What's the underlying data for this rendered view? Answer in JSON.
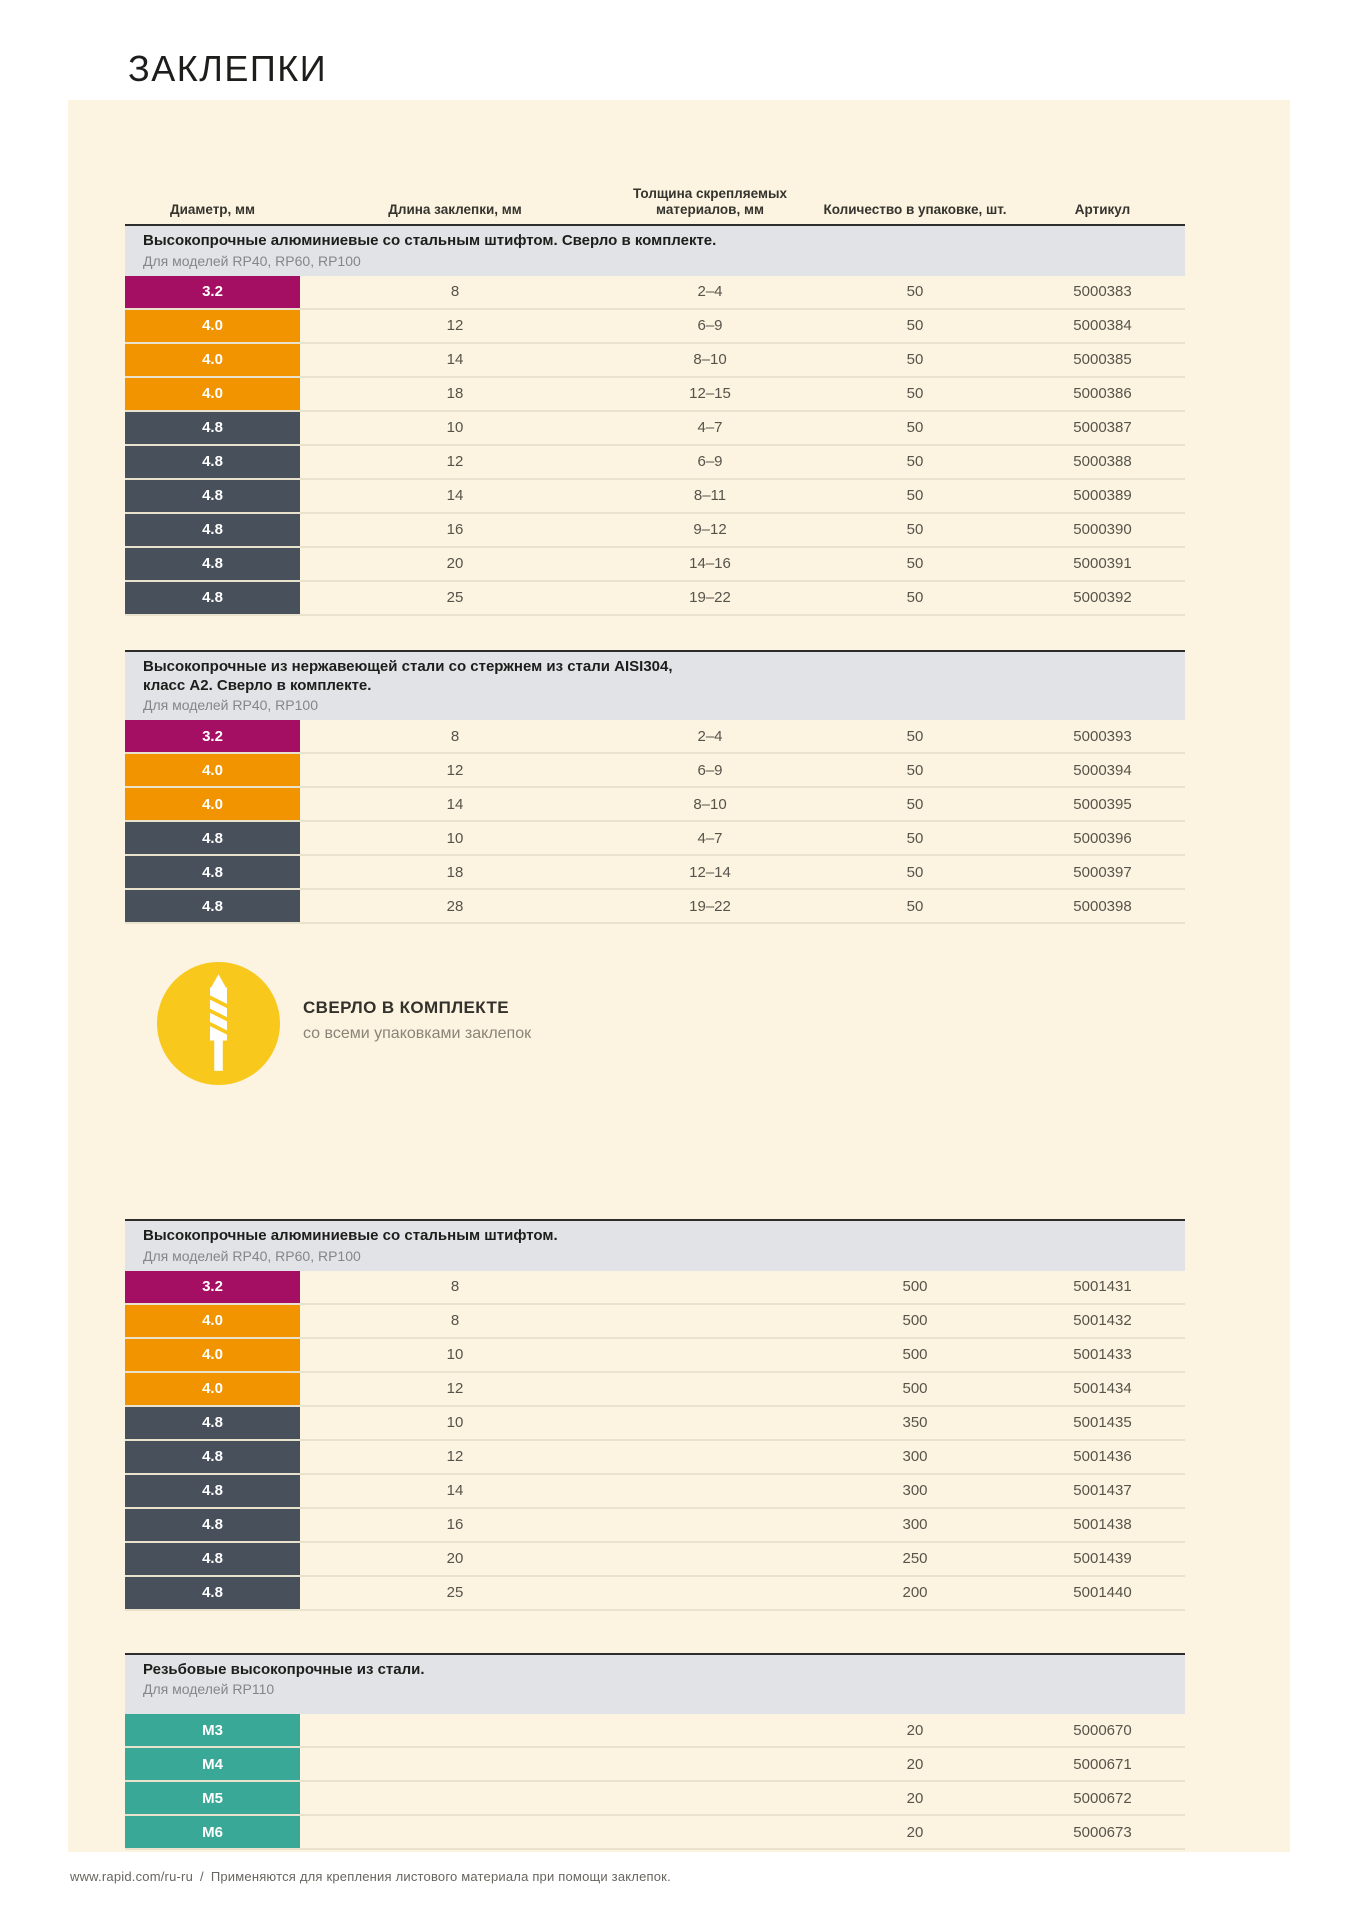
{
  "title": "ЗАКЛЕПКИ",
  "columns": {
    "diameter": "Диаметр, мм",
    "length": "Длина заклепки, мм",
    "thickness": "Толщина скрепляемых\nматериалов, мм",
    "quantity": "Количество в упаковке, шт.",
    "article": "Артикул"
  },
  "colors": {
    "magenta": "#a50f63",
    "orange": "#f29400",
    "slate": "#47505b",
    "teal": "#3aa897",
    "yellow": "#f8c81d",
    "panel_cream": "#fcf4e0",
    "section_header_gray": "#e2e3e6"
  },
  "sections": [
    {
      "title": "Высокопрочные алюминиевые со стальным штифтом. Сверло в комплекте.",
      "subtitle": "Для моделей RP40, RP60, RP100",
      "rows": [
        {
          "diameter": "3.2",
          "color": "magenta",
          "length": "8",
          "thickness": "2–4",
          "quantity": "50",
          "article": "5000383"
        },
        {
          "diameter": "4.0",
          "color": "orange",
          "length": "12",
          "thickness": "6–9",
          "quantity": "50",
          "article": "5000384"
        },
        {
          "diameter": "4.0",
          "color": "orange",
          "length": "14",
          "thickness": "8–10",
          "quantity": "50",
          "article": "5000385"
        },
        {
          "diameter": "4.0",
          "color": "orange",
          "length": "18",
          "thickness": "12–15",
          "quantity": "50",
          "article": "5000386"
        },
        {
          "diameter": "4.8",
          "color": "slate",
          "length": "10",
          "thickness": "4–7",
          "quantity": "50",
          "article": "5000387"
        },
        {
          "diameter": "4.8",
          "color": "slate",
          "length": "12",
          "thickness": "6–9",
          "quantity": "50",
          "article": "5000388"
        },
        {
          "diameter": "4.8",
          "color": "slate",
          "length": "14",
          "thickness": "8–11",
          "quantity": "50",
          "article": "5000389"
        },
        {
          "diameter": "4.8",
          "color": "slate",
          "length": "16",
          "thickness": "9–12",
          "quantity": "50",
          "article": "5000390"
        },
        {
          "diameter": "4.8",
          "color": "slate",
          "length": "20",
          "thickness": "14–16",
          "quantity": "50",
          "article": "5000391"
        },
        {
          "diameter": "4.8",
          "color": "slate",
          "length": "25",
          "thickness": "19–22",
          "quantity": "50",
          "article": "5000392"
        }
      ]
    },
    {
      "title": "Высокопрочные из нержавеющей стали со стержнем из стали AISI304,\nкласс А2. Сверло в комплекте.",
      "subtitle": "Для моделей RP40, RP100",
      "rows": [
        {
          "diameter": "3.2",
          "color": "magenta",
          "length": "8",
          "thickness": "2–4",
          "quantity": "50",
          "article": "5000393"
        },
        {
          "diameter": "4.0",
          "color": "orange",
          "length": "12",
          "thickness": "6–9",
          "quantity": "50",
          "article": "5000394"
        },
        {
          "diameter": "4.0",
          "color": "orange",
          "length": "14",
          "thickness": "8–10",
          "quantity": "50",
          "article": "5000395"
        },
        {
          "diameter": "4.8",
          "color": "slate",
          "length": "10",
          "thickness": "4–7",
          "quantity": "50",
          "article": "5000396"
        },
        {
          "diameter": "4.8",
          "color": "slate",
          "length": "18",
          "thickness": "12–14",
          "quantity": "50",
          "article": "5000397"
        },
        {
          "diameter": "4.8",
          "color": "slate",
          "length": "28",
          "thickness": "19–22",
          "quantity": "50",
          "article": "5000398"
        }
      ]
    },
    {
      "title": "Высокопрочные алюминиевые со стальным штифтом.",
      "subtitle": "Для моделей RP40, RP60, RP100",
      "rows": [
        {
          "diameter": "3.2",
          "color": "magenta",
          "length": "8",
          "thickness": "",
          "quantity": "500",
          "article": "5001431"
        },
        {
          "diameter": "4.0",
          "color": "orange",
          "length": "8",
          "thickness": "",
          "quantity": "500",
          "article": "5001432"
        },
        {
          "diameter": "4.0",
          "color": "orange",
          "length": "10",
          "thickness": "",
          "quantity": "500",
          "article": "5001433"
        },
        {
          "diameter": "4.0",
          "color": "orange",
          "length": "12",
          "thickness": "",
          "quantity": "500",
          "article": "5001434"
        },
        {
          "diameter": "4.8",
          "color": "slate",
          "length": "10",
          "thickness": "",
          "quantity": "350",
          "article": "5001435"
        },
        {
          "diameter": "4.8",
          "color": "slate",
          "length": "12",
          "thickness": "",
          "quantity": "300",
          "article": "5001436"
        },
        {
          "diameter": "4.8",
          "color": "slate",
          "length": "14",
          "thickness": "",
          "quantity": "300",
          "article": "5001437"
        },
        {
          "diameter": "4.8",
          "color": "slate",
          "length": "16",
          "thickness": "",
          "quantity": "300",
          "article": "5001438"
        },
        {
          "diameter": "4.8",
          "color": "slate",
          "length": "20",
          "thickness": "",
          "quantity": "250",
          "article": "5001439"
        },
        {
          "diameter": "4.8",
          "color": "slate",
          "length": "25",
          "thickness": "",
          "quantity": "200",
          "article": "5001440"
        }
      ]
    },
    {
      "title": "Резьбовые высокопрочные из стали.",
      "subtitle": "Для моделей RP110",
      "rows": [
        {
          "diameter": "M3",
          "color": "teal",
          "length": "",
          "thickness": "",
          "quantity": "20",
          "article": "5000670"
        },
        {
          "diameter": "M4",
          "color": "teal",
          "length": "",
          "thickness": "",
          "quantity": "20",
          "article": "5000671"
        },
        {
          "diameter": "M5",
          "color": "teal",
          "length": "",
          "thickness": "",
          "quantity": "20",
          "article": "5000672"
        },
        {
          "diameter": "M6",
          "color": "teal",
          "length": "",
          "thickness": "",
          "quantity": "20",
          "article": "5000673"
        }
      ]
    }
  ],
  "callout": {
    "title": "СВЕРЛО В КОМПЛЕКТЕ",
    "subtitle": "со всеми упаковками заклепок"
  },
  "footer": {
    "url": "www.rapid.com/ru-ru",
    "separator": "/",
    "text": "Применяются для крепления листового материала при помощи заклепок."
  }
}
